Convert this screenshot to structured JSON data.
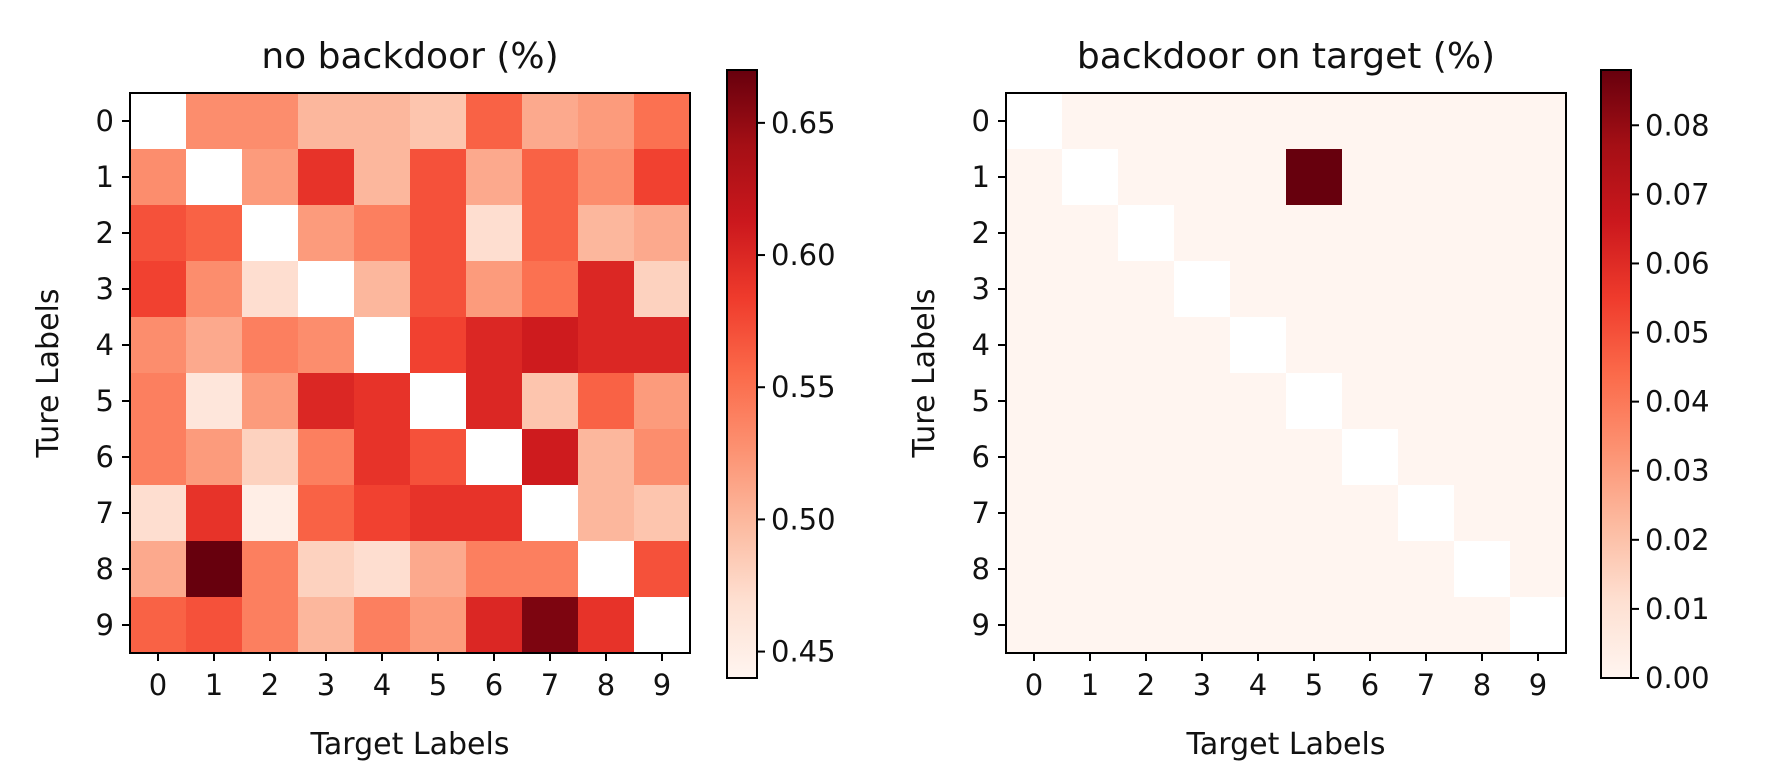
{
  "chart_data": [
    {
      "type": "heatmap",
      "title": "no backdoor (%)",
      "xlabel": "Target Labels",
      "ylabel": "Ture Labels",
      "x_categories": [
        "0",
        "1",
        "2",
        "3",
        "4",
        "5",
        "6",
        "7",
        "8",
        "9"
      ],
      "y_categories": [
        "0",
        "1",
        "2",
        "3",
        "4",
        "5",
        "6",
        "7",
        "8",
        "9"
      ],
      "colormap": "Reds",
      "diagonal": "blank",
      "colorbar": {
        "min": 0.44,
        "max": 0.67,
        "ticks": [
          "0.45",
          "0.50",
          "0.55",
          "0.60",
          "0.65"
        ]
      },
      "values": [
        [
          null,
          0.53,
          0.53,
          0.5,
          0.5,
          0.49,
          0.56,
          0.51,
          0.52,
          0.55
        ],
        [
          0.53,
          null,
          0.52,
          0.59,
          0.5,
          0.57,
          0.51,
          0.56,
          0.53,
          0.58
        ],
        [
          0.57,
          0.56,
          null,
          0.52,
          0.54,
          0.57,
          0.47,
          0.56,
          0.5,
          0.51
        ],
        [
          0.58,
          0.53,
          0.47,
          null,
          0.5,
          0.57,
          0.52,
          0.55,
          0.6,
          0.48
        ],
        [
          0.53,
          0.51,
          0.54,
          0.53,
          null,
          0.58,
          0.6,
          0.61,
          0.6,
          0.6
        ],
        [
          0.54,
          0.46,
          0.52,
          0.6,
          0.59,
          null,
          0.6,
          0.49,
          0.56,
          0.52
        ],
        [
          0.54,
          0.52,
          0.48,
          0.54,
          0.59,
          0.57,
          null,
          0.61,
          0.5,
          0.53
        ],
        [
          0.47,
          0.59,
          0.45,
          0.56,
          0.58,
          0.59,
          0.59,
          null,
          0.5,
          0.49
        ],
        [
          0.51,
          0.67,
          0.54,
          0.48,
          0.47,
          0.51,
          0.54,
          0.54,
          null,
          0.57
        ],
        [
          0.56,
          0.57,
          0.54,
          0.5,
          0.54,
          0.52,
          0.6,
          0.66,
          0.59,
          null
        ]
      ]
    },
    {
      "type": "heatmap",
      "title": "backdoor on target (%)",
      "xlabel": "Target Labels",
      "ylabel": "Ture Labels",
      "x_categories": [
        "0",
        "1",
        "2",
        "3",
        "4",
        "5",
        "6",
        "7",
        "8",
        "9"
      ],
      "y_categories": [
        "0",
        "1",
        "2",
        "3",
        "4",
        "5",
        "6",
        "7",
        "8",
        "9"
      ],
      "colormap": "Reds",
      "diagonal": "blank",
      "colorbar": {
        "min": 0.0,
        "max": 0.088,
        "ticks": [
          "0.00",
          "0.01",
          "0.02",
          "0.03",
          "0.04",
          "0.05",
          "0.06",
          "0.07",
          "0.08"
        ]
      },
      "values": [
        [
          null,
          0,
          0,
          0,
          0,
          0,
          0,
          0,
          0,
          0
        ],
        [
          0,
          null,
          0,
          0,
          0,
          0.088,
          0,
          0,
          0,
          0
        ],
        [
          0,
          0,
          null,
          0,
          0,
          0,
          0,
          0,
          0,
          0
        ],
        [
          0,
          0,
          0,
          null,
          0,
          0,
          0,
          0,
          0,
          0
        ],
        [
          0,
          0,
          0,
          0,
          null,
          0,
          0,
          0,
          0,
          0
        ],
        [
          0,
          0,
          0,
          0,
          0,
          null,
          0,
          0,
          0,
          0
        ],
        [
          0,
          0,
          0,
          0,
          0,
          0,
          null,
          0,
          0,
          0
        ],
        [
          0,
          0,
          0,
          0,
          0,
          0,
          0,
          null,
          0,
          0
        ],
        [
          0,
          0,
          0,
          0,
          0,
          0,
          0,
          0,
          null,
          0
        ],
        [
          0,
          0,
          0,
          0,
          0,
          0,
          0,
          0,
          0,
          null
        ]
      ]
    }
  ]
}
